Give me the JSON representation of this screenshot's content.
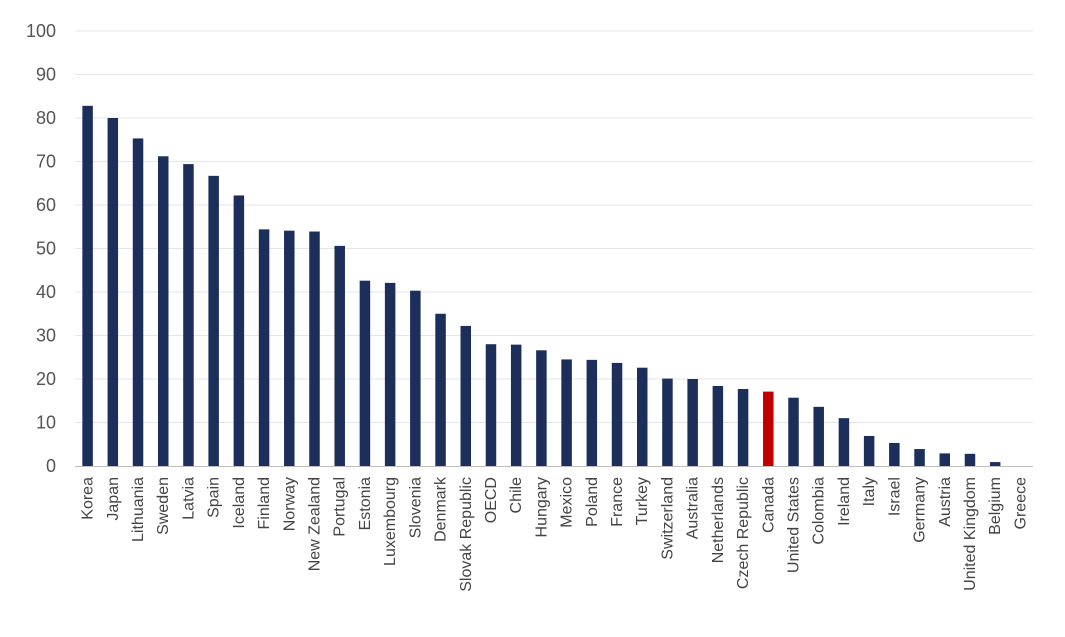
{
  "colors": {
    "bar": "#1c2f5b",
    "highlight": "#c00000",
    "grid": "#e6e6e6",
    "axis": "#bfbfbf",
    "text": "#555555"
  },
  "chart_data": {
    "type": "bar",
    "title": "",
    "xlabel": "",
    "ylabel": "",
    "ylim": [
      0,
      100
    ],
    "yticks": [
      0,
      10,
      20,
      30,
      40,
      50,
      60,
      70,
      80,
      90,
      100
    ],
    "grid": true,
    "legend": "none",
    "highlight_category": "Canada",
    "categories": [
      "Korea",
      "Japan",
      "Lithuania",
      "Sweden",
      "Latvia",
      "Spain",
      "Iceland",
      "Finland",
      "Norway",
      "New Zealand",
      "Portugal",
      "Estonia",
      "Luxembourg",
      "Slovenia",
      "Denmark",
      "Slovak Republic",
      "OECD",
      "Chile",
      "Hungary",
      "Mexico",
      "Poland",
      "France",
      "Turkey",
      "Switzerland",
      "Australia",
      "Netherlands",
      "Czech Republic",
      "Canada",
      "United States",
      "Colombia",
      "Ireland",
      "Italy",
      "Israel",
      "Germany",
      "Austria",
      "United Kingdom",
      "Belgium",
      "Greece"
    ],
    "values": [
      82.8,
      80.0,
      75.3,
      71.2,
      69.4,
      66.7,
      62.2,
      54.4,
      54.1,
      53.9,
      50.6,
      42.6,
      42.1,
      40.3,
      35.0,
      32.2,
      28.0,
      27.9,
      26.6,
      24.5,
      24.4,
      23.7,
      22.6,
      20.1,
      20.0,
      18.4,
      17.7,
      17.1,
      15.7,
      13.6,
      11.0,
      6.9,
      5.3,
      3.9,
      2.9,
      2.8,
      0.9,
      0.0
    ]
  }
}
